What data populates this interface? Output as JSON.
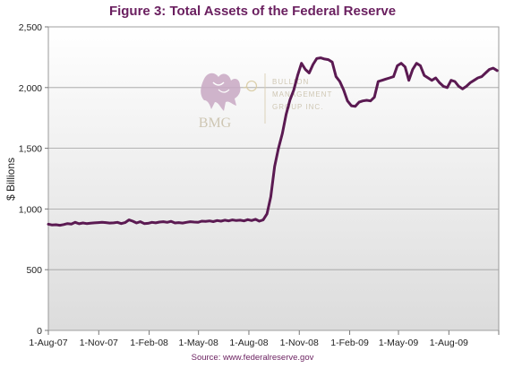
{
  "chart_data": {
    "type": "line",
    "title": "Figure 3: Total Assets of the Federal Reserve",
    "ylabel": "$ Billions",
    "xlabel": "",
    "source": "Source: www.federalreserve.gov",
    "ylim": [
      0,
      2500
    ],
    "yticks": [
      0,
      500,
      1000,
      1500,
      2000,
      2500
    ],
    "ytick_labels": [
      "0",
      "500",
      "1,000",
      "1,500",
      "2,000",
      "2,500"
    ],
    "xlim": [
      "2007-08-01",
      "2009-10-31"
    ],
    "xticks": [
      "2007-08-01",
      "2007-11-01",
      "2008-02-01",
      "2008-05-01",
      "2008-08-01",
      "2008-11-01",
      "2009-02-01",
      "2009-05-01",
      "2009-08-01"
    ],
    "xtick_labels": [
      "1-Aug-07",
      "1-Nov-07",
      "1-Feb-08",
      "1-May-08",
      "1-Aug-08",
      "1-Nov-08",
      "1-Feb-09",
      "1-May-09",
      "1-Aug-09"
    ],
    "grid": true,
    "legend": false,
    "line_color": "#5b1a52",
    "series": [
      {
        "x": [
          "2007-08-01",
          "2007-08-08",
          "2007-08-15",
          "2007-08-22",
          "2007-08-29",
          "2007-09-05",
          "2007-09-12",
          "2007-09-19",
          "2007-09-26",
          "2007-10-03",
          "2007-10-10",
          "2007-10-17",
          "2007-10-24",
          "2007-10-31",
          "2007-11-07",
          "2007-11-14",
          "2007-11-21",
          "2007-11-28",
          "2007-12-05",
          "2007-12-12",
          "2007-12-19",
          "2007-12-26",
          "2008-01-02",
          "2008-01-09",
          "2008-01-16",
          "2008-01-23",
          "2008-01-30",
          "2008-02-06",
          "2008-02-13",
          "2008-02-20",
          "2008-02-27",
          "2008-03-05",
          "2008-03-12",
          "2008-03-19",
          "2008-03-26",
          "2008-04-02",
          "2008-04-09",
          "2008-04-16",
          "2008-04-23",
          "2008-04-30",
          "2008-05-07",
          "2008-05-14",
          "2008-05-21",
          "2008-05-28",
          "2008-06-04",
          "2008-06-11",
          "2008-06-18",
          "2008-06-25",
          "2008-07-02",
          "2008-07-09",
          "2008-07-16",
          "2008-07-23",
          "2008-07-30",
          "2008-08-06",
          "2008-08-13",
          "2008-08-20",
          "2008-08-27",
          "2008-09-03",
          "2008-09-10",
          "2008-09-17",
          "2008-09-24",
          "2008-10-01",
          "2008-10-08",
          "2008-10-15",
          "2008-10-22",
          "2008-10-29",
          "2008-11-05",
          "2008-11-12",
          "2008-11-19",
          "2008-11-26",
          "2008-12-03",
          "2008-12-10",
          "2008-12-17",
          "2008-12-24",
          "2008-12-31",
          "2009-01-07",
          "2009-01-14",
          "2009-01-21",
          "2009-01-28",
          "2009-02-04",
          "2009-02-11",
          "2009-02-18",
          "2009-02-25",
          "2009-03-04",
          "2009-03-11",
          "2009-03-18",
          "2009-03-25",
          "2009-04-01",
          "2009-04-08",
          "2009-04-15",
          "2009-04-22",
          "2009-04-29",
          "2009-05-06",
          "2009-05-13",
          "2009-05-20",
          "2009-05-27",
          "2009-06-03",
          "2009-06-10",
          "2009-06-17",
          "2009-06-24",
          "2009-07-01",
          "2009-07-08",
          "2009-07-15",
          "2009-07-22",
          "2009-07-29",
          "2009-08-05",
          "2009-08-12",
          "2009-08-19",
          "2009-08-26",
          "2009-09-02",
          "2009-09-09",
          "2009-09-16",
          "2009-09-23",
          "2009-09-30",
          "2009-10-07",
          "2009-10-14",
          "2009-10-21",
          "2009-10-28"
        ],
        "values": [
          875,
          868,
          870,
          866,
          872,
          880,
          876,
          890,
          878,
          885,
          880,
          883,
          886,
          888,
          890,
          888,
          884,
          886,
          890,
          880,
          888,
          910,
          900,
          885,
          895,
          880,
          882,
          890,
          886,
          892,
          895,
          890,
          898,
          885,
          888,
          884,
          890,
          895,
          892,
          890,
          900,
          898,
          902,
          896,
          905,
          900,
          908,
          902,
          910,
          905,
          908,
          902,
          912,
          905,
          915,
          900,
          910,
          960,
          1100,
          1350,
          1500,
          1620,
          1780,
          1900,
          1980,
          2100,
          2200,
          2150,
          2120,
          2190,
          2240,
          2245,
          2235,
          2230,
          2210,
          2090,
          2050,
          1980,
          1890,
          1850,
          1845,
          1880,
          1890,
          1895,
          1890,
          1920,
          2050,
          2060,
          2070,
          2080,
          2090,
          2180,
          2200,
          2170,
          2060,
          2150,
          2200,
          2180,
          2100,
          2080,
          2060,
          2080,
          2040,
          2010,
          2000,
          2060,
          2050,
          2010,
          1990,
          2010,
          2040,
          2060,
          2080,
          2090,
          2120,
          2150,
          2160,
          2140
        ]
      }
    ]
  },
  "watermark": {
    "brand": "BMG",
    "line1": "BULLION",
    "line2": "MANAGEMENT",
    "line3": "GROUP INC."
  }
}
